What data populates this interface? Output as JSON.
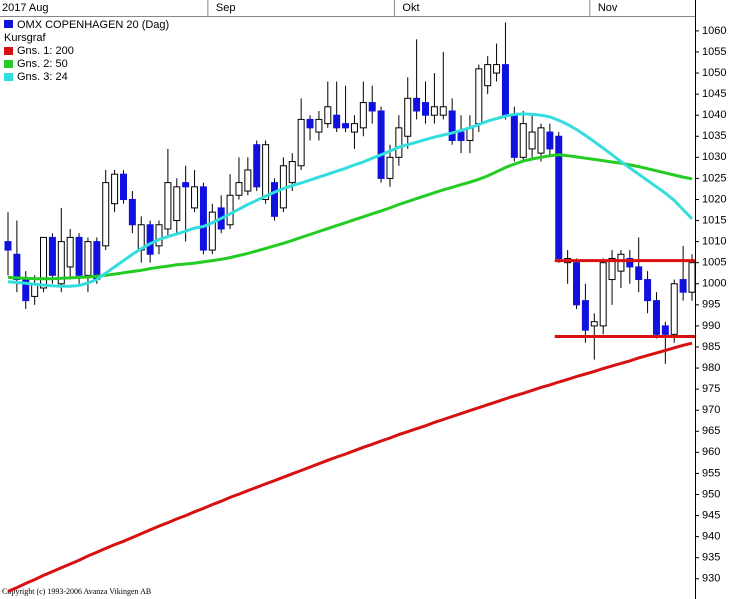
{
  "chart_data": {
    "type": "candlestick",
    "subtitle": "Kursgraf",
    "copyright": "Copyright (c) 1993-2006 Avanza Vikingen AB",
    "month_labels": [
      {
        "label": "2017 Aug",
        "index": 0
      },
      {
        "label": "Sep",
        "index": 23
      },
      {
        "label": "Okt",
        "index": 44
      },
      {
        "label": "Nov",
        "index": 66
      }
    ],
    "ylim": [
      925.2,
      1063.3
    ],
    "yticks": [
      930,
      935,
      940,
      945,
      950,
      955,
      960,
      965,
      970,
      975,
      980,
      985,
      990,
      995,
      1000,
      1005,
      1010,
      1015,
      1020,
      1025,
      1030,
      1035,
      1040,
      1045,
      1050,
      1055,
      1060
    ],
    "candles": {
      "name": "OMX COPENHAGEN 20 (Dag)",
      "color": "#1010e0",
      "open": [
        1010,
        1007,
        1001,
        997,
        999,
        1011,
        1000,
        1004,
        1011,
        1002,
        1010,
        1009,
        1019,
        1026,
        1020,
        1008,
        1014,
        1009,
        1013,
        1015,
        1024,
        1018,
        1023,
        1008,
        1018,
        1014,
        1021,
        1022,
        1033,
        1020,
        1024,
        1018,
        1024,
        1028,
        1039,
        1036,
        1038,
        1040,
        1038,
        1036,
        1037,
        1043,
        1041,
        1025,
        1030,
        1035,
        1044,
        1043,
        1040,
        1040,
        1041,
        1036,
        1034,
        1038,
        1047,
        1050,
        1052,
        1040,
        1030,
        1032,
        1031,
        1036,
        1035,
        1005,
        1005,
        996,
        990,
        990,
        1001,
        1003,
        1006,
        1004,
        1001,
        996,
        990,
        988,
        1001,
        998
      ],
      "high": [
        1017,
        1015,
        1003,
        1002,
        1011,
        1012,
        1018,
        1013,
        1012,
        1011,
        1011,
        1027,
        1027,
        1027,
        1022,
        1016,
        1015,
        1015,
        1032,
        1025,
        1028,
        1027,
        1024,
        1019,
        1021,
        1026,
        1030,
        1030,
        1034,
        1034,
        1025,
        1030,
        1031,
        1044,
        1040,
        1041,
        1048,
        1048,
        1047,
        1040,
        1048,
        1047,
        1042,
        1033,
        1040,
        1049,
        1058,
        1048,
        1050,
        1055,
        1044,
        1040,
        1040,
        1052,
        1054,
        1057,
        1062,
        1042,
        1041,
        1040,
        1038,
        1038,
        1036,
        1008,
        1006,
        1000,
        993,
        1006,
        1008,
        1008,
        1008,
        1011,
        1003,
        998,
        991,
        1001,
        1009,
        1007
      ],
      "low": [
        1002,
        998,
        994,
        995,
        998,
        1000,
        998,
        1001,
        1000,
        998,
        1000,
        1008,
        1017,
        1019,
        1012,
        1005,
        1005,
        1007,
        1011,
        1012,
        1010,
        1017,
        1007,
        1007,
        1012,
        1013,
        1020,
        1021,
        1022,
        1019,
        1015,
        1017,
        1022,
        1027,
        1034,
        1034,
        1037,
        1036,
        1036,
        1032,
        1035,
        1038,
        1024,
        1023,
        1028,
        1032,
        1039,
        1038,
        1038,
        1039,
        1033,
        1031,
        1031,
        1036,
        1045,
        1048,
        1039,
        1029,
        1029,
        1030,
        1029,
        1030,
        1005,
        1000,
        994,
        986,
        982,
        988,
        995,
        999,
        1000,
        998,
        993,
        987,
        981,
        986,
        996,
        996
      ],
      "close": [
        1008,
        1001,
        996,
        1000,
        1011,
        1002,
        1010,
        1011,
        1002,
        1010,
        1001,
        1024,
        1026,
        1020,
        1014,
        1014,
        1007,
        1014,
        1024,
        1023,
        1023,
        1023,
        1008,
        1017,
        1013,
        1021,
        1024,
        1027,
        1023,
        1033,
        1016,
        1028,
        1029,
        1039,
        1037,
        1039,
        1042,
        1037,
        1037,
        1038,
        1043,
        1041,
        1025,
        1030,
        1037,
        1044,
        1041,
        1040,
        1042,
        1042,
        1034,
        1034,
        1037,
        1051,
        1052,
        1052,
        1040,
        1030,
        1038,
        1036,
        1037,
        1032,
        1006,
        1006,
        995,
        989,
        991,
        1005,
        1006,
        1007,
        1004,
        1001,
        996,
        988,
        988,
        1000,
        998,
        1005
      ]
    },
    "series": [
      {
        "name": "Gns. 1: 200",
        "color": "#d81010",
        "values": [
          927.0,
          927.9,
          928.9,
          929.8,
          930.8,
          931.7,
          932.6,
          933.5,
          934.4,
          935.4,
          936.3,
          937.2,
          938.1,
          938.9,
          939.8,
          940.7,
          941.6,
          942.5,
          943.3,
          944.2,
          945.0,
          945.9,
          946.7,
          947.6,
          948.4,
          949.3,
          950.1,
          950.9,
          951.7,
          952.5,
          953.3,
          954.1,
          954.9,
          955.7,
          956.5,
          957.3,
          958.1,
          958.9,
          959.6,
          960.4,
          961.2,
          961.9,
          962.7,
          963.4,
          964.2,
          964.9,
          965.6,
          966.3,
          967.1,
          967.8,
          968.5,
          969.2,
          969.9,
          970.6,
          971.3,
          972.0,
          972.7,
          973.4,
          974.0,
          974.7,
          975.4,
          976.0,
          976.7,
          977.3,
          978.0,
          978.6,
          979.2,
          979.9,
          980.5,
          981.1,
          981.7,
          982.4,
          983.0,
          983.6,
          984.2,
          984.8,
          985.4,
          985.9
        ]
      },
      {
        "name": "Gns. 2: 50",
        "color": "#22cc22",
        "values": [
          1001.5,
          1001.4,
          1001.3,
          1001.2,
          1001.2,
          1001.2,
          1001.3,
          1001.4,
          1001.5,
          1001.6,
          1001.8,
          1002.0,
          1002.3,
          1002.6,
          1002.9,
          1003.2,
          1003.6,
          1003.9,
          1004.2,
          1004.5,
          1004.7,
          1004.9,
          1005.2,
          1005.5,
          1005.8,
          1006.2,
          1006.7,
          1007.2,
          1007.8,
          1008.4,
          1009.0,
          1009.6,
          1010.3,
          1011.0,
          1011.7,
          1012.4,
          1013.1,
          1013.8,
          1014.5,
          1015.2,
          1015.9,
          1016.6,
          1017.3,
          1018.0,
          1018.8,
          1019.5,
          1020.2,
          1020.9,
          1021.6,
          1022.3,
          1022.9,
          1023.5,
          1024.1,
          1024.8,
          1025.6,
          1026.6,
          1027.6,
          1028.4,
          1029.1,
          1029.6,
          1030.0,
          1030.4,
          1030.6,
          1030.4,
          1030.1,
          1029.8,
          1029.5,
          1029.2,
          1028.9,
          1028.6,
          1028.2,
          1027.8,
          1027.3,
          1026.8,
          1026.3,
          1025.8,
          1025.3,
          1024.9
        ]
      },
      {
        "name": "Gns. 3: 24",
        "color": "#33dddd",
        "values": [
          1000.5,
          1000.3,
          1000.1,
          999.9,
          999.7,
          999.5,
          999.4,
          999.4,
          999.6,
          1000.2,
          1001.0,
          1002.5,
          1004.0,
          1005.5,
          1007.0,
          1008.3,
          1009.5,
          1010.5,
          1011.2,
          1011.8,
          1012.5,
          1013.2,
          1013.6,
          1014.5,
          1015.5,
          1016.6,
          1017.7,
          1018.8,
          1019.8,
          1020.8,
          1021.7,
          1022.6,
          1023.3,
          1023.9,
          1024.6,
          1025.3,
          1026.0,
          1026.7,
          1027.4,
          1028.2,
          1028.9,
          1029.8,
          1030.6,
          1031.5,
          1032.4,
          1033.0,
          1033.6,
          1034.2,
          1034.8,
          1035.3,
          1035.8,
          1036.4,
          1037.0,
          1037.8,
          1038.6,
          1039.2,
          1039.8,
          1040.2,
          1040.3,
          1040.2,
          1040.0,
          1039.6,
          1038.8,
          1037.8,
          1036.6,
          1035.2,
          1033.7,
          1032.2,
          1030.6,
          1029.0,
          1027.5,
          1026.0,
          1024.5,
          1023.0,
          1021.5,
          1019.8,
          1017.6,
          1015.4
        ]
      }
    ],
    "hlines": [
      {
        "value": 1005.5,
        "color": "#d81010",
        "index": [
          62,
          77
        ]
      },
      {
        "value": 987.5,
        "color": "#d81010",
        "index": [
          62,
          77
        ]
      }
    ]
  }
}
